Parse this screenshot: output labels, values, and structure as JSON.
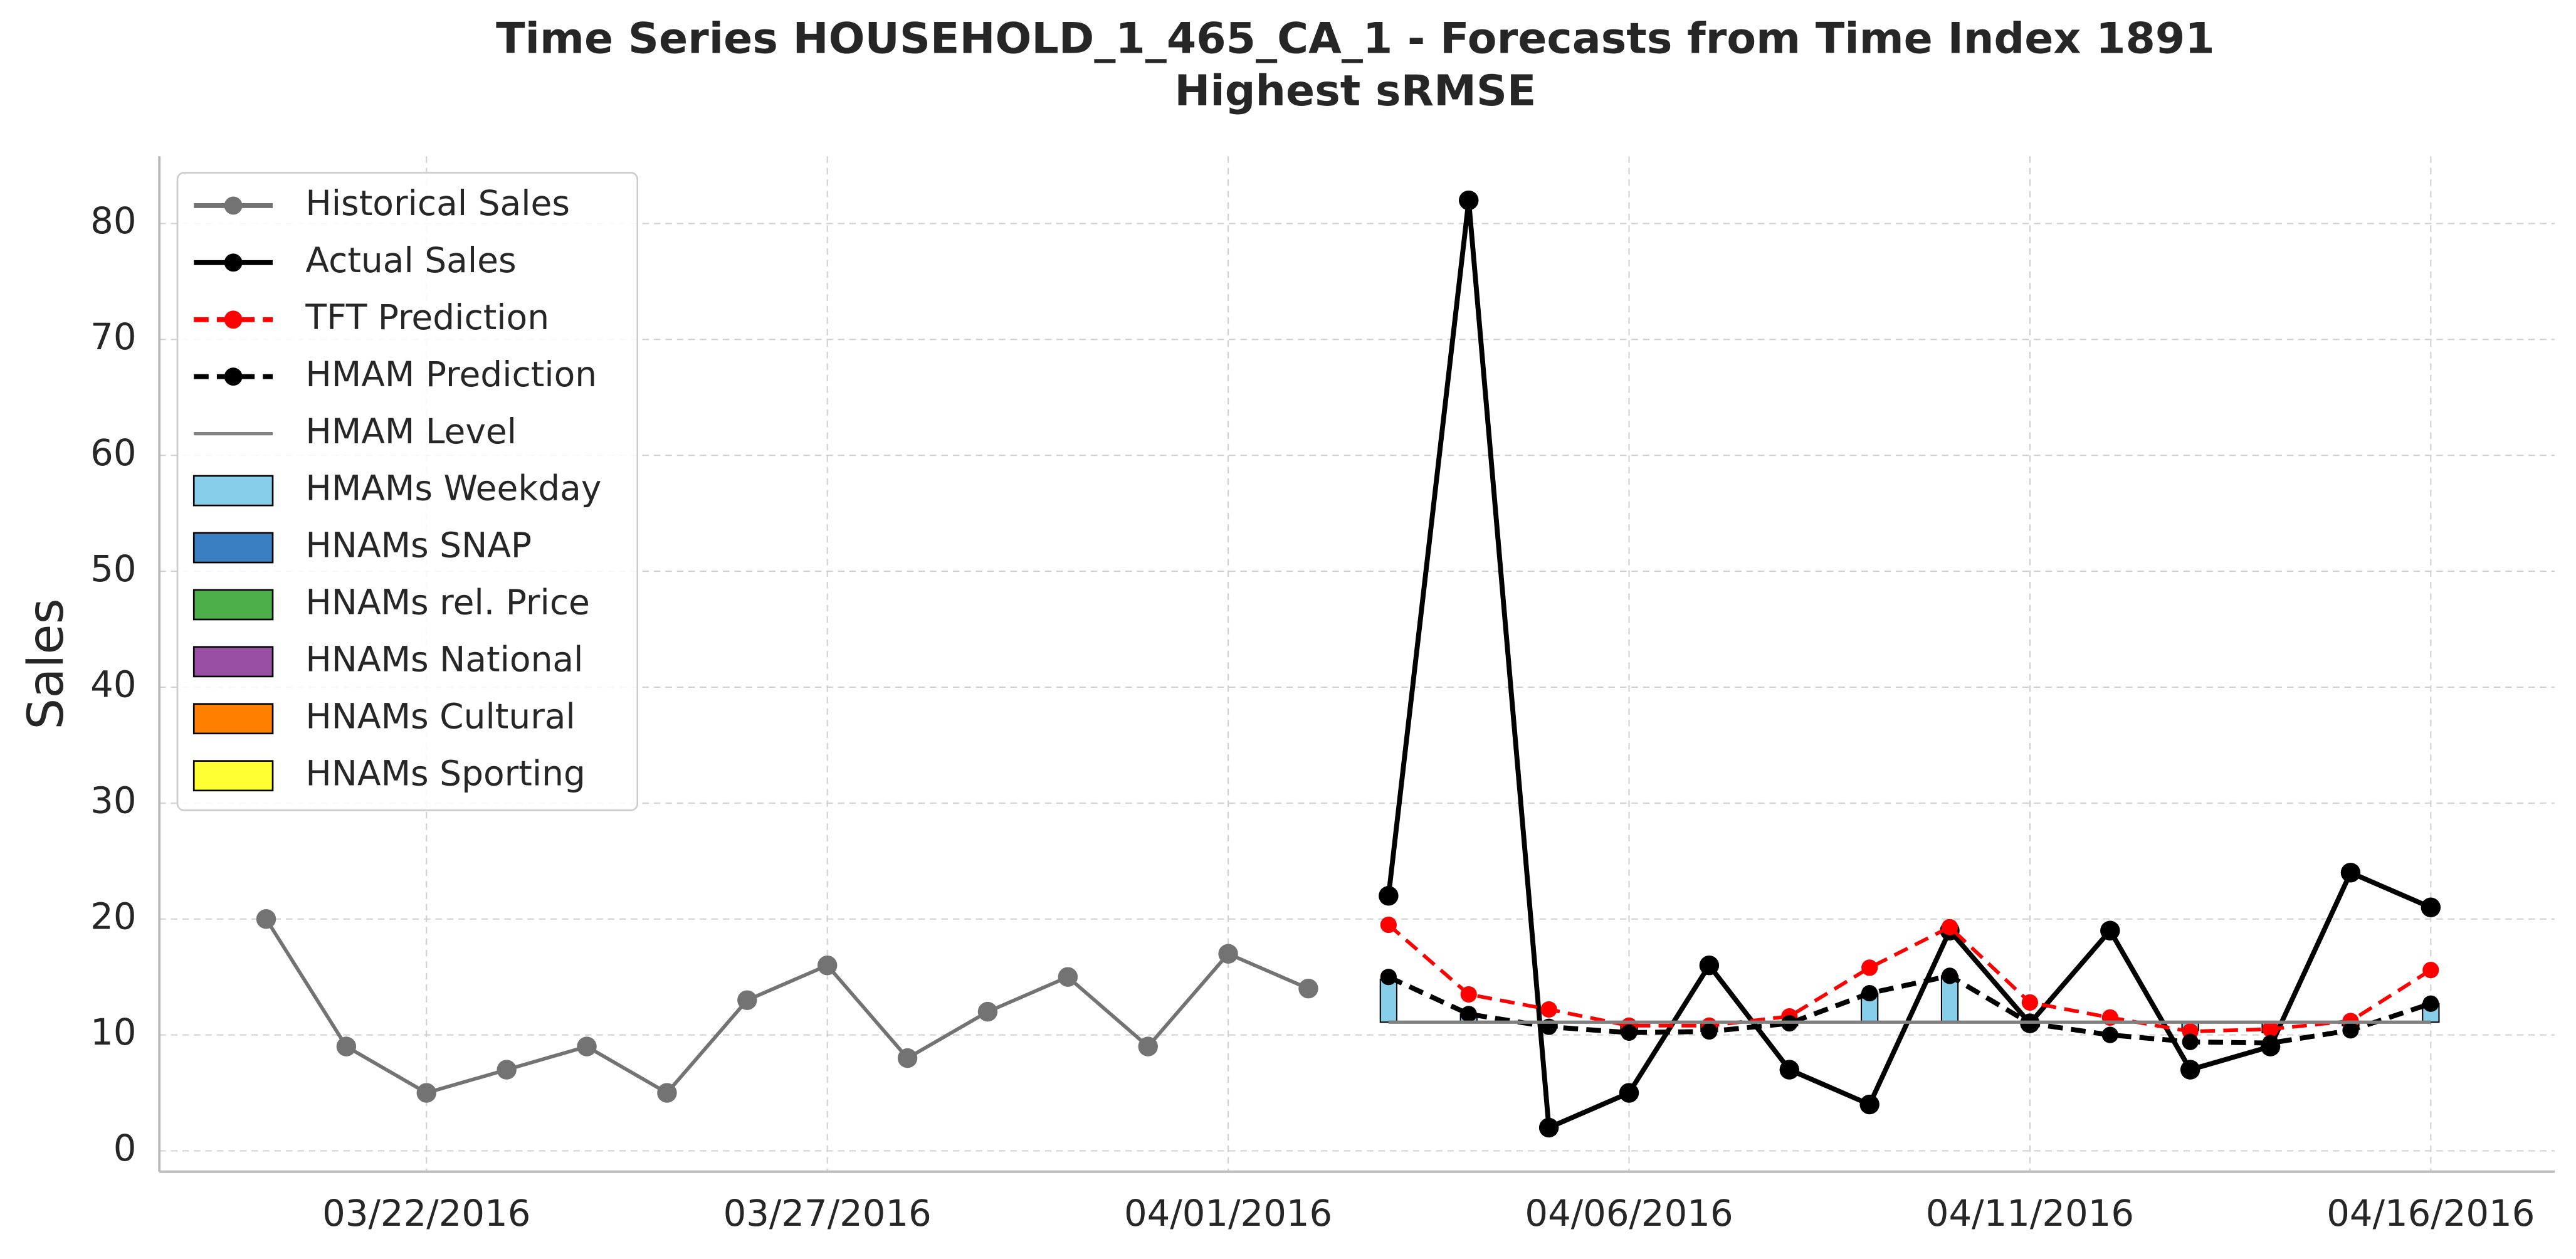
{
  "chart_data": {
    "type": "line",
    "title": "Time Series HOUSEHOLD_1_465_CA_1 - Forecasts from Time Index 1891",
    "subtitle": "Highest sRMSE",
    "y_label": "Sales",
    "x": [
      "03/20/2016",
      "03/21/2016",
      "03/22/2016",
      "03/23/2016",
      "03/24/2016",
      "03/25/2016",
      "03/26/2016",
      "03/27/2016",
      "03/28/2016",
      "03/29/2016",
      "03/30/2016",
      "03/31/2016",
      "04/01/2016",
      "04/02/2016",
      "04/03/2016",
      "04/04/2016",
      "04/05/2016",
      "04/06/2016",
      "04/07/2016",
      "04/08/2016",
      "04/09/2016",
      "04/10/2016",
      "04/11/2016",
      "04/12/2016",
      "04/13/2016",
      "04/14/2016",
      "04/15/2016",
      "04/16/2016"
    ],
    "xticks": [
      "03/22/2016",
      "03/27/2016",
      "04/01/2016",
      "04/06/2016",
      "04/11/2016",
      "04/16/2016"
    ],
    "ylim": [
      -1.8,
      85.8
    ],
    "yticks": [
      0,
      10,
      20,
      30,
      40,
      50,
      60,
      70,
      80
    ],
    "grid": true,
    "series": [
      {
        "name": "Historical Sales",
        "kind": "line",
        "color": "#737373",
        "linestyle": "solid",
        "marker": true,
        "values": [
          20,
          9,
          5,
          7,
          9,
          5,
          13,
          16,
          8,
          12,
          15,
          9,
          17,
          14,
          null,
          null,
          null,
          null,
          null,
          null,
          null,
          null,
          null,
          null,
          null,
          null,
          null,
          null
        ]
      },
      {
        "name": "Actual Sales",
        "kind": "line",
        "color": "#000000",
        "linestyle": "solid",
        "marker": true,
        "values": [
          null,
          null,
          null,
          null,
          null,
          null,
          null,
          null,
          null,
          null,
          null,
          null,
          null,
          null,
          22,
          82,
          2,
          5,
          16,
          7,
          4,
          19,
          11,
          19,
          7,
          9,
          24,
          21
        ]
      },
      {
        "name": "TFT Prediction",
        "kind": "line",
        "color": "#ff0000",
        "linestyle": "dashed",
        "marker": true,
        "values": [
          null,
          null,
          null,
          null,
          null,
          null,
          null,
          null,
          null,
          null,
          null,
          null,
          null,
          null,
          19.5,
          13.5,
          12.2,
          10.8,
          10.8,
          11.6,
          15.8,
          19.3,
          12.8,
          11.5,
          10.3,
          10.5,
          11.2,
          15.6
        ]
      },
      {
        "name": "HMAM Prediction",
        "kind": "line",
        "color": "#000000",
        "linestyle": "dashed",
        "marker": true,
        "values": [
          null,
          null,
          null,
          null,
          null,
          null,
          null,
          null,
          null,
          null,
          null,
          null,
          null,
          null,
          15,
          11.8,
          10.7,
          10.2,
          10.3,
          11,
          13.6,
          15.1,
          11,
          10,
          9.4,
          9.3,
          10.4,
          12.7
        ]
      },
      {
        "name": "HMAM Level",
        "kind": "level",
        "color": "#808080",
        "linestyle": "solid",
        "marker": false,
        "values": [
          null,
          null,
          null,
          null,
          null,
          null,
          null,
          null,
          null,
          null,
          null,
          null,
          null,
          null,
          11.1,
          11.1,
          11.1,
          11.1,
          11.1,
          11.1,
          11.1,
          11.1,
          11.1,
          11.1,
          11.1,
          11.1,
          11.1,
          11.1
        ]
      },
      {
        "name": "HMAMs Weekday",
        "kind": "bar",
        "color": "#87ceeb",
        "values": [
          null,
          null,
          null,
          null,
          null,
          null,
          null,
          null,
          null,
          null,
          null,
          null,
          null,
          null,
          3.7,
          0.7,
          0,
          0,
          0,
          0,
          2.5,
          4.0,
          0,
          0,
          -0.7,
          -0.9,
          -0.3,
          1.6
        ]
      },
      {
        "name": "HNAMs SNAP",
        "kind": "bar",
        "color": "#3a7fc1",
        "values": [
          null,
          null,
          null,
          null,
          null,
          null,
          null,
          null,
          null,
          null,
          null,
          null,
          null,
          null,
          0,
          0,
          -0.5,
          -0.9,
          -0.8,
          -0.3,
          0,
          0,
          0,
          0,
          0,
          0,
          0,
          0
        ]
      },
      {
        "name": "HNAMs rel. Price",
        "kind": "bar",
        "color": "#4daf4a",
        "values": [
          null,
          null,
          null,
          null,
          null,
          null,
          null,
          null,
          null,
          null,
          null,
          null,
          null,
          null,
          0,
          0,
          0,
          0,
          0,
          0,
          0,
          0,
          0,
          0,
          0,
          0,
          0,
          0
        ]
      },
      {
        "name": "HNAMs National",
        "kind": "bar",
        "color": "#984ea3",
        "values": [
          null,
          null,
          null,
          null,
          null,
          null,
          null,
          null,
          null,
          null,
          null,
          null,
          null,
          null,
          0,
          0,
          0,
          0,
          0,
          0,
          0,
          0,
          0,
          0,
          0,
          0,
          0,
          0
        ]
      },
      {
        "name": "HNAMs Cultural",
        "kind": "bar",
        "color": "#ff7f00",
        "values": [
          null,
          null,
          null,
          null,
          null,
          null,
          null,
          null,
          null,
          null,
          null,
          null,
          null,
          null,
          0,
          0,
          0,
          0,
          0,
          0,
          0,
          0,
          0,
          0,
          0,
          0,
          0,
          0
        ]
      },
      {
        "name": "HNAMs Sporting",
        "kind": "bar",
        "color": "#ffff33",
        "values": [
          null,
          null,
          null,
          null,
          null,
          null,
          null,
          null,
          null,
          null,
          null,
          null,
          null,
          null,
          0,
          0,
          0,
          0,
          0,
          0,
          0,
          0,
          0,
          0,
          0,
          0,
          0,
          0
        ]
      }
    ]
  }
}
